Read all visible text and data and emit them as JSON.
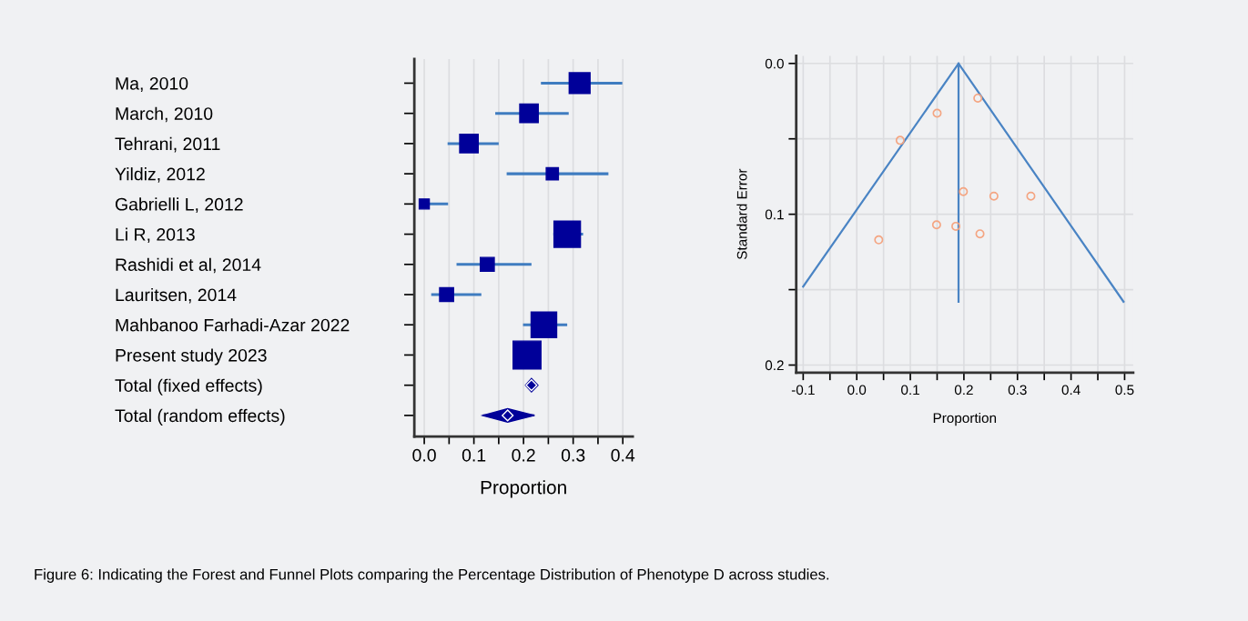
{
  "chart_data": [
    {
      "type": "scatter",
      "orientation": "horizontal",
      "xlabel": "Proportion",
      "categories": [
        "Ma, 2010",
        "March, 2010",
        "Tehrani, 2011",
        "Yildiz, 2012",
        "Gabrielli L, 2012",
        "Li R, 2013",
        "Rashidi et al, 2014",
        "Lauritsen, 2014",
        "Mahbanoo Farhadi-Azar 2022",
        "Present study 2023",
        "Total (fixed effects)",
        "Total (random effects)"
      ],
      "series": [
        {
          "type": "bubble",
          "marker": "square",
          "color": "#000099",
          "values": [
            0.313,
            0.211,
            0.09,
            0.258,
            0.0,
            0.288,
            0.127,
            0.045,
            0.241,
            0.207,
            null,
            null
          ],
          "sizes": [
            0.56,
            0.44,
            0.44,
            0.19,
            0.13,
            0.9,
            0.25,
            0.25,
            0.84,
            1,
            null,
            null
          ],
          "errors": [
            [
              0.235,
              0.399
            ],
            [
              0.143,
              0.291
            ],
            [
              0.047,
              0.15
            ],
            [
              0.166,
              0.371
            ],
            [
              0.0,
              0.048
            ],
            [
              0.26,
              0.32
            ],
            [
              0.065,
              0.216
            ],
            [
              0.014,
              0.115
            ],
            [
              0.199,
              0.288
            ],
            null,
            null,
            null
          ]
        },
        {
          "type": "scatter",
          "marker": "diamond",
          "color": "#000099",
          "values": [
            null,
            null,
            null,
            null,
            null,
            null,
            null,
            null,
            null,
            null,
            0.216,
            0.168
          ],
          "errors": [
            null,
            null,
            null,
            null,
            null,
            null,
            null,
            null,
            null,
            null,
            [
              0.204,
              0.229
            ],
            [
              0.118,
              0.222
            ]
          ]
        }
      ],
      "xlim": [
        -0.02,
        0.42
      ],
      "xticks": [
        {
          "value": 0,
          "label": "0.0"
        },
        {
          "value": 0.05,
          "label": null
        },
        0.1,
        {
          "value": 0.15,
          "label": null
        },
        0.2,
        {
          "value": 0.25,
          "label": null
        },
        0.3,
        {
          "value": 0.35,
          "label": null
        },
        0.4
      ],
      "grid": "x",
      "annotations": [
        "Figure 6: Indicating the Forest and Funnel Plots comparing the Percentage Distribution of Phenotype D across studies."
      ]
    },
    {
      "type": "scatter",
      "xlabel": "Proportion",
      "ylabel": "Standard Error",
      "series": [
        {
          "type": "line",
          "color": "#4a84c4",
          "x": [
            -0.1,
            0.19,
            0.498
          ],
          "values": [
            0.148,
            0.0,
            0.158
          ]
        },
        {
          "type": "line",
          "color": "#4a84c4",
          "x": [
            0.19,
            0.19
          ],
          "values": [
            0.0,
            0.158
          ]
        },
        {
          "type": "scatter",
          "marker": "circle",
          "color": "#f4a582",
          "x": [
            0.226,
            0.15,
            0.081,
            0.199,
            0.256,
            0.325,
            0.149,
            0.185,
            0.23,
            0.041
          ],
          "values": [
            0.023,
            0.033,
            0.051,
            0.085,
            0.088,
            0.088,
            0.107,
            0.108,
            0.113,
            0.117
          ]
        }
      ],
      "xlim": [
        -0.113,
        0.516
      ],
      "xticks": [
        -0.1,
        {
          "value": -0.05,
          "label": null
        },
        {
          "value": 0,
          "label": "0.0"
        },
        {
          "value": 0.05,
          "label": null
        },
        0.1,
        {
          "value": 0.15,
          "label": null
        },
        0.2,
        {
          "value": 0.25,
          "label": null
        },
        0.3,
        {
          "value": 0.35,
          "label": null
        },
        0.4,
        {
          "value": 0.45,
          "label": null
        },
        0.5
      ],
      "ylim": [
        0.205,
        -0.005
      ],
      "yticks": [
        {
          "value": 0,
          "label": "0.0"
        },
        {
          "value": 0.05,
          "label": null
        },
        0.1,
        {
          "value": 0.15,
          "label": null
        },
        0.2
      ],
      "grid": true
    }
  ]
}
